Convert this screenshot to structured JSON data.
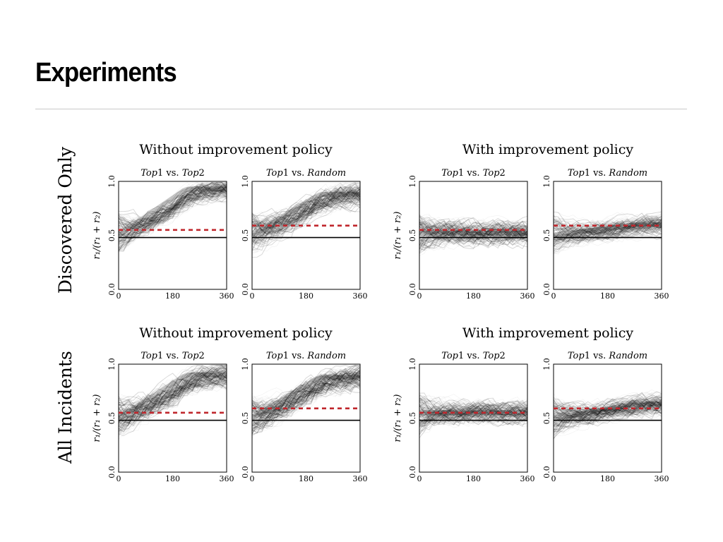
{
  "slide": {
    "title": "Experiments"
  },
  "figure": {
    "row_labels": [
      "Discovered Only",
      "All Incidents"
    ],
    "group_titles": [
      "Without improvement policy",
      "With improvement policy"
    ],
    "y_axis_label": "r₁/(r₁ + r₂)"
  },
  "chart_data": [
    {
      "type": "heatmap",
      "row": "Discovered Only",
      "group": "Without improvement policy",
      "title_italic_a": "Top",
      "title_num_a": "1",
      "title_vs": " vs. ",
      "title_italic_b": "Top",
      "title_num_b": "2",
      "xlim": [
        0,
        360
      ],
      "ylim": [
        0.0,
        1.0
      ],
      "xticks": [
        "0",
        "180",
        "360"
      ],
      "yticks": [
        "0.0",
        "0.5",
        "1.0"
      ],
      "ylabel": "r₁/(r₁ + r₂)",
      "reference_line": 0.48,
      "red_dashed_line": 0.55,
      "mass_center": 0.93,
      "spread": 0.12,
      "trend": "rising",
      "ink_color": "#000000",
      "dash_color": "#c0272d"
    },
    {
      "type": "heatmap",
      "row": "Discovered Only",
      "group": "Without improvement policy",
      "title_italic_a": "Top",
      "title_num_a": "1",
      "title_vs": " vs. ",
      "title_italic_b": "Random",
      "title_num_b": "",
      "xlim": [
        0,
        360
      ],
      "ylim": [
        0.0,
        1.0
      ],
      "xticks": [
        "0",
        "180",
        "360"
      ],
      "yticks": [
        "0.0",
        "0.5",
        "1.0"
      ],
      "ylabel": "",
      "reference_line": 0.48,
      "red_dashed_line": 0.59,
      "mass_center": 0.88,
      "spread": 0.14,
      "trend": "rising",
      "ink_color": "#000000",
      "dash_color": "#c0272d"
    },
    {
      "type": "heatmap",
      "row": "Discovered Only",
      "group": "With improvement policy",
      "title_italic_a": "Top",
      "title_num_a": "1",
      "title_vs": " vs. ",
      "title_italic_b": "Top",
      "title_num_b": "2",
      "xlim": [
        0,
        360
      ],
      "ylim": [
        0.0,
        1.0
      ],
      "xticks": [
        "0",
        "180",
        "360"
      ],
      "yticks": [
        "0.0",
        "0.5",
        "1.0"
      ],
      "ylabel": "r₁/(r₁ + r₂)",
      "reference_line": 0.48,
      "red_dashed_line": 0.55,
      "mass_center": 0.52,
      "spread": 0.14,
      "trend": "flat",
      "ink_color": "#000000",
      "dash_color": "#c0272d"
    },
    {
      "type": "heatmap",
      "row": "Discovered Only",
      "group": "With improvement policy",
      "title_italic_a": "Top",
      "title_num_a": "1",
      "title_vs": " vs. ",
      "title_italic_b": "Random",
      "title_num_b": "",
      "xlim": [
        0,
        360
      ],
      "ylim": [
        0.0,
        1.0
      ],
      "xticks": [
        "0",
        "180",
        "360"
      ],
      "yticks": [
        "0.0",
        "0.5",
        "1.0"
      ],
      "ylabel": "",
      "reference_line": 0.48,
      "red_dashed_line": 0.59,
      "mass_center": 0.6,
      "spread": 0.12,
      "trend": "mild",
      "ink_color": "#000000",
      "dash_color": "#c0272d"
    },
    {
      "type": "heatmap",
      "row": "All Incidents",
      "group": "Without improvement policy",
      "title_italic_a": "Top",
      "title_num_a": "1",
      "title_vs": " vs. ",
      "title_italic_b": "Top",
      "title_num_b": "2",
      "xlim": [
        0,
        360
      ],
      "ylim": [
        0.0,
        1.0
      ],
      "xticks": [
        "0",
        "180",
        "360"
      ],
      "yticks": [
        "0.0",
        "0.5",
        "1.0"
      ],
      "ylabel": "r₁/(r₁ + r₂)",
      "reference_line": 0.48,
      "red_dashed_line": 0.55,
      "mass_center": 0.9,
      "spread": 0.14,
      "trend": "rising",
      "ink_color": "#000000",
      "dash_color": "#c0272d"
    },
    {
      "type": "heatmap",
      "row": "All Incidents",
      "group": "Without improvement policy",
      "title_italic_a": "Top",
      "title_num_a": "1",
      "title_vs": " vs. ",
      "title_italic_b": "Random",
      "title_num_b": "",
      "xlim": [
        0,
        360
      ],
      "ylim": [
        0.0,
        1.0
      ],
      "xticks": [
        "0",
        "180",
        "360"
      ],
      "yticks": [
        "0.0",
        "0.5",
        "1.0"
      ],
      "ylabel": "",
      "reference_line": 0.48,
      "red_dashed_line": 0.59,
      "mass_center": 0.88,
      "spread": 0.14,
      "trend": "rising",
      "ink_color": "#000000",
      "dash_color": "#c0272d"
    },
    {
      "type": "heatmap",
      "row": "All Incidents",
      "group": "With improvement policy",
      "title_italic_a": "Top",
      "title_num_a": "1",
      "title_vs": " vs. ",
      "title_italic_b": "Top",
      "title_num_b": "2",
      "xlim": [
        0,
        360
      ],
      "ylim": [
        0.0,
        1.0
      ],
      "xticks": [
        "0",
        "180",
        "360"
      ],
      "yticks": [
        "0.0",
        "0.5",
        "1.0"
      ],
      "ylabel": "r₁/(r₁ + r₂)",
      "reference_line": 0.48,
      "red_dashed_line": 0.55,
      "mass_center": 0.55,
      "spread": 0.13,
      "trend": "flat",
      "ink_color": "#000000",
      "dash_color": "#c0272d"
    },
    {
      "type": "heatmap",
      "row": "All Incidents",
      "group": "With improvement policy",
      "title_italic_a": "Top",
      "title_num_a": "1",
      "title_vs": " vs. ",
      "title_italic_b": "Random",
      "title_num_b": "",
      "xlim": [
        0,
        360
      ],
      "ylim": [
        0.0,
        1.0
      ],
      "xticks": [
        "0",
        "180",
        "360"
      ],
      "yticks": [
        "0.0",
        "0.5",
        "1.0"
      ],
      "ylabel": "",
      "reference_line": 0.48,
      "red_dashed_line": 0.59,
      "mass_center": 0.63,
      "spread": 0.12,
      "trend": "mild",
      "ink_color": "#000000",
      "dash_color": "#c0272d"
    }
  ]
}
